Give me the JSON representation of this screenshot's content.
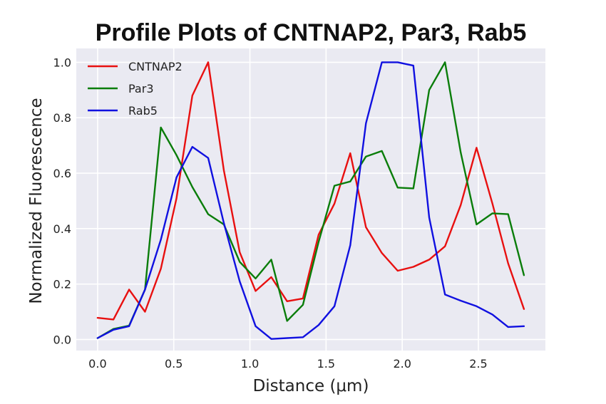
{
  "chart_data": {
    "type": "line",
    "title": "Profile Plots of CNTNAP2, Par3, Rab5",
    "xlabel": "Distance (μm)",
    "ylabel": "Normalized Fluorescence",
    "xlim": [
      -0.14,
      2.94
    ],
    "ylim": [
      -0.04,
      1.05
    ],
    "xticks": [
      0.0,
      0.5,
      1.0,
      1.5,
      2.0,
      2.5
    ],
    "xtick_labels": [
      "0.0",
      "0.5",
      "1.0",
      "1.5",
      "2.0",
      "2.5"
    ],
    "yticks": [
      0.0,
      0.2,
      0.4,
      0.6,
      0.8,
      1.0
    ],
    "ytick_labels": [
      "0.0",
      "0.2",
      "0.4",
      "0.6",
      "0.8",
      "1.0"
    ],
    "grid": true,
    "background_color": "#eaeaf2",
    "legend_position": "top-left",
    "x": [
      0.0,
      0.104,
      0.207,
      0.311,
      0.415,
      0.518,
      0.622,
      0.726,
      0.829,
      0.933,
      1.037,
      1.14,
      1.244,
      1.348,
      1.451,
      1.555,
      1.659,
      1.762,
      1.866,
      1.97,
      2.073,
      2.177,
      2.281,
      2.384,
      2.488,
      2.592,
      2.695,
      2.799
    ],
    "series": [
      {
        "name": "CNTNAP2",
        "color": "#e81010",
        "values": [
          0.078,
          0.072,
          0.18,
          0.1,
          0.255,
          0.51,
          0.88,
          1.0,
          0.61,
          0.315,
          0.175,
          0.225,
          0.138,
          0.148,
          0.378,
          0.49,
          0.672,
          0.405,
          0.312,
          0.248,
          0.262,
          0.288,
          0.336,
          0.485,
          0.692,
          0.49,
          0.275,
          0.11
        ]
      },
      {
        "name": "Par3",
        "color": "#0a7d0a",
        "values": [
          0.005,
          0.038,
          0.05,
          0.18,
          0.765,
          0.665,
          0.55,
          0.452,
          0.415,
          0.28,
          0.22,
          0.288,
          0.067,
          0.125,
          0.352,
          0.555,
          0.57,
          0.66,
          0.68,
          0.548,
          0.545,
          0.9,
          1.0,
          0.675,
          0.415,
          0.455,
          0.452,
          0.232
        ]
      },
      {
        "name": "Rab5",
        "color": "#1010e0",
        "values": [
          0.005,
          0.035,
          0.048,
          0.18,
          0.36,
          0.585,
          0.695,
          0.655,
          0.42,
          0.21,
          0.048,
          0.002,
          0.005,
          0.008,
          0.052,
          0.12,
          0.34,
          0.78,
          1.0,
          1.0,
          0.988,
          0.44,
          0.162,
          0.14,
          0.12,
          0.09,
          0.045,
          0.048
        ]
      }
    ]
  }
}
